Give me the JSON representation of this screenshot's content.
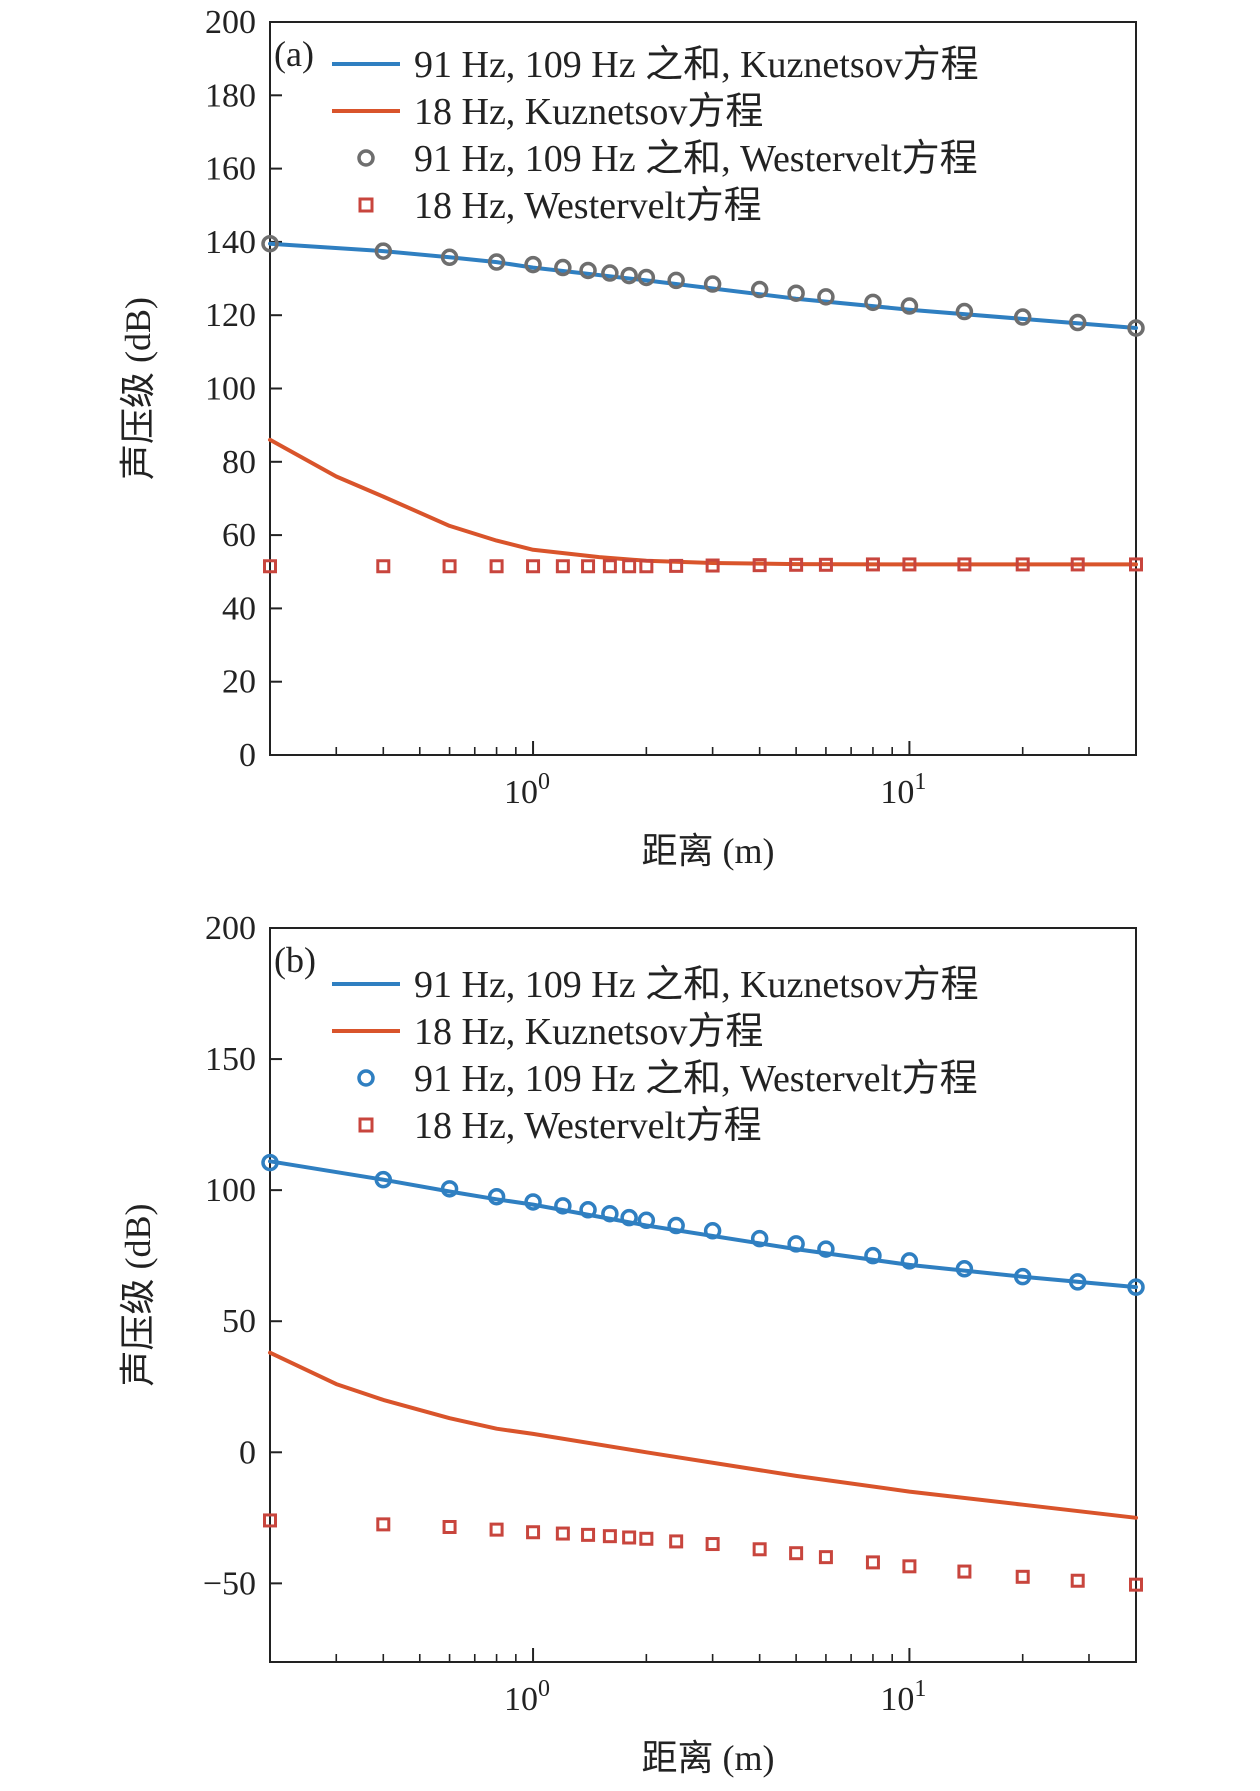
{
  "colors": {
    "blue": "#2f7fc1",
    "orange": "#d9542b",
    "gray_circle": "#6e6e6e",
    "square_edge": "#c8453d",
    "axis": "#222222"
  },
  "chart_data": [
    {
      "type": "line",
      "panel_label": "(a)",
      "xlabel": "距离 (m)",
      "ylabel": "声压级 (dB)",
      "xscale": "log",
      "xlim": [
        0.2,
        40
      ],
      "ylim": [
        0,
        200
      ],
      "yticks": [
        0,
        20,
        40,
        60,
        80,
        100,
        120,
        140,
        160,
        180,
        200
      ],
      "ytick_labels": [
        "0",
        "20",
        "40",
        "60",
        "80",
        "100",
        "120",
        "140",
        "160",
        "180",
        "200"
      ],
      "xticks": [
        1,
        10
      ],
      "xtick_labels": [
        {
          "base": "10",
          "exp": "0"
        },
        {
          "base": "10",
          "exp": "1"
        }
      ],
      "legend_position": "top-right",
      "series": [
        {
          "name": "91 Hz, 109 Hz 之和, Kuznetsov方程",
          "kind": "line",
          "color": "#2f7fc1",
          "x": [
            0.2,
            0.4,
            0.6,
            0.8,
            1,
            2,
            5,
            10,
            20,
            40
          ],
          "y": [
            139.5,
            137.5,
            135.8,
            134.5,
            133,
            129.5,
            124.5,
            121.5,
            119,
            116.5
          ]
        },
        {
          "name": "18 Hz, Kuznetsov方程",
          "kind": "line",
          "color": "#d9542b",
          "x": [
            0.2,
            0.3,
            0.4,
            0.6,
            0.8,
            1,
            1.5,
            2,
            3,
            5,
            10,
            20,
            40
          ],
          "y": [
            86,
            76,
            70.5,
            62.5,
            58.5,
            56,
            54,
            53,
            52.4,
            52.1,
            52,
            52,
            52
          ]
        },
        {
          "name": "91 Hz, 109 Hz 之和, Westervelt方程",
          "kind": "circle",
          "color": "#6e6e6e",
          "x": [
            0.2,
            0.4,
            0.6,
            0.8,
            1,
            1.2,
            1.4,
            1.6,
            1.8,
            2,
            2.4,
            3,
            4,
            5,
            6,
            8,
            10,
            14,
            20,
            28,
            40
          ],
          "y": [
            139.5,
            137.5,
            135.8,
            134.5,
            133.8,
            133,
            132.2,
            131.5,
            130.8,
            130.3,
            129.5,
            128.5,
            127,
            126,
            125,
            123.5,
            122.5,
            121,
            119.5,
            118,
            116.5
          ]
        },
        {
          "name": "18 Hz, Westervelt方程",
          "kind": "square",
          "color": "#d9542b",
          "x": [
            0.2,
            0.4,
            0.6,
            0.8,
            1,
            1.2,
            1.4,
            1.6,
            1.8,
            2,
            2.4,
            3,
            4,
            5,
            6,
            8,
            10,
            14,
            20,
            28,
            40
          ],
          "y": [
            51.5,
            51.5,
            51.5,
            51.5,
            51.5,
            51.5,
            51.5,
            51.5,
            51.5,
            51.5,
            51.6,
            51.7,
            51.8,
            51.9,
            51.9,
            52,
            52,
            52,
            52,
            52,
            52
          ]
        }
      ]
    },
    {
      "type": "line",
      "panel_label": "(b)",
      "xlabel": "距离 (m)",
      "ylabel": "声压级 (dB)",
      "xscale": "log",
      "xlim": [
        0.2,
        40
      ],
      "ylim": [
        -80,
        200
      ],
      "yticks": [
        -50,
        0,
        50,
        100,
        150,
        200
      ],
      "ytick_labels": [
        "−50",
        "0",
        "50",
        "100",
        "150",
        "200"
      ],
      "xticks": [
        1,
        10
      ],
      "xtick_labels": [
        {
          "base": "10",
          "exp": "0"
        },
        {
          "base": "10",
          "exp": "1"
        }
      ],
      "legend_position": "top-right",
      "series": [
        {
          "name": "91 Hz, 109 Hz 之和, Kuznetsov方程",
          "kind": "line",
          "color": "#2f7fc1",
          "x": [
            0.2,
            0.4,
            0.6,
            0.8,
            1,
            2,
            5,
            10,
            20,
            40
          ],
          "y": [
            111,
            104,
            99.5,
            96.5,
            94.5,
            86.5,
            77.5,
            71.5,
            67,
            63
          ]
        },
        {
          "name": "18 Hz, Kuznetsov方程",
          "kind": "line",
          "color": "#d9542b",
          "x": [
            0.2,
            0.3,
            0.4,
            0.6,
            0.8,
            1,
            2,
            5,
            10,
            20,
            40
          ],
          "y": [
            38,
            26,
            20,
            13,
            9,
            7,
            0,
            -9,
            -15,
            -20,
            -25
          ]
        },
        {
          "name": "91 Hz, 109 Hz 之和, Westervelt方程",
          "kind": "circle",
          "color": "#2f7fc1",
          "x": [
            0.2,
            0.4,
            0.6,
            0.8,
            1,
            1.2,
            1.4,
            1.6,
            1.8,
            2,
            2.4,
            3,
            4,
            5,
            6,
            8,
            10,
            14,
            20,
            28,
            40
          ],
          "y": [
            110.5,
            104,
            100.5,
            97.5,
            95.5,
            94,
            92.5,
            91,
            89.5,
            88.5,
            86.5,
            84.5,
            81.5,
            79.5,
            77.5,
            75,
            73,
            70,
            67,
            65,
            63
          ]
        },
        {
          "name": "18 Hz, Westervelt方程",
          "kind": "square",
          "color": "#d9542b",
          "x": [
            0.2,
            0.4,
            0.6,
            0.8,
            1,
            1.2,
            1.4,
            1.6,
            1.8,
            2,
            2.4,
            3,
            4,
            5,
            6,
            8,
            10,
            14,
            20,
            28,
            40
          ],
          "y": [
            -26,
            -27.5,
            -28.5,
            -29.5,
            -30.5,
            -31,
            -31.5,
            -32,
            -32.5,
            -33,
            -34,
            -35,
            -37,
            -38.5,
            -40,
            -42,
            -43.5,
            -45.5,
            -47.5,
            -49,
            -50.5
          ]
        }
      ]
    }
  ]
}
